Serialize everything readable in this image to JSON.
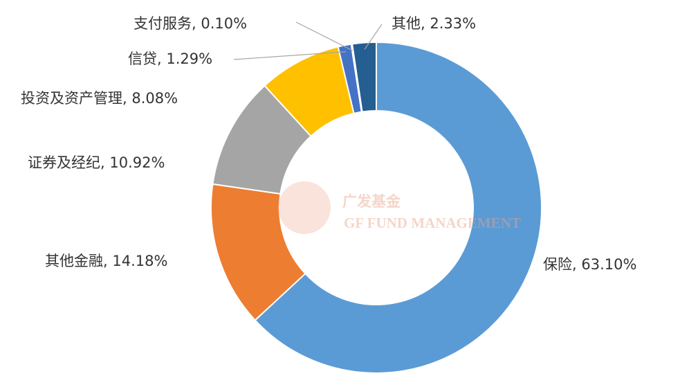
{
  "chart_data": {
    "type": "donut",
    "categories": [
      "保险",
      "其他金融",
      "证券及经纪",
      "投资及资产管理",
      "信贷",
      "支付服务",
      "其他"
    ],
    "values": [
      63.1,
      14.18,
      10.92,
      8.08,
      1.29,
      0.1,
      2.33
    ],
    "value_labels": [
      "63.10%",
      "14.18%",
      "10.92%",
      "8.08%",
      "1.29%",
      "0.10%",
      "2.33%"
    ],
    "colors": [
      "#5b9bd5",
      "#ed7d31",
      "#a5a5a5",
      "#ffc000",
      "#4472c4",
      "#70ad47",
      "#255e91"
    ],
    "watermark": {
      "title": "广发基金",
      "subtitle": "GF FUND MANAGEMENT"
    }
  }
}
